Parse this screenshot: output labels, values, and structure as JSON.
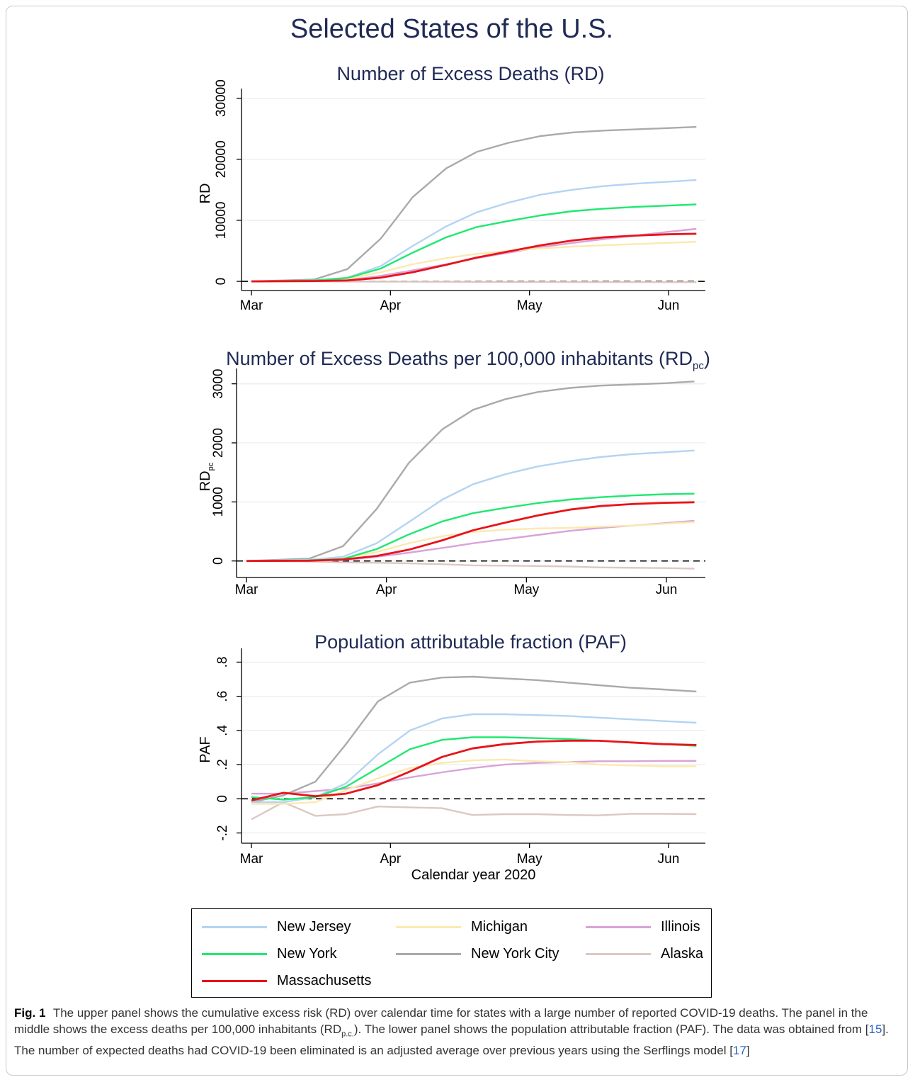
{
  "figure": {
    "title": "Selected States of the U.S."
  },
  "colors": {
    "title": "#1f2a55",
    "New Jersey": "#b3d4f3",
    "New York": "#20e870",
    "Massachusetts": "#e8131a",
    "Michigan": "#fbe9b0",
    "New York City": "#aaaaaa",
    "Illinois": "#d9a3d8",
    "Alaska": "#dcc8c2"
  },
  "legend": {
    "placement": "bottom",
    "items": [
      {
        "label": "New Jersey",
        "color_key": "New Jersey"
      },
      {
        "label": "Michigan",
        "color_key": "Michigan"
      },
      {
        "label": "Illinois",
        "color_key": "Illinois"
      },
      {
        "label": "New York",
        "color_key": "New York"
      },
      {
        "label": "New York City",
        "color_key": "New York City"
      },
      {
        "label": "Alaska",
        "color_key": "Alaska"
      },
      {
        "label": "Massachusetts",
        "color_key": "Massachusetts"
      }
    ]
  },
  "caption": {
    "label": "Fig. 1",
    "part1": "The upper panel shows the cumulative excess risk (RD) over calendar time for states with a large number of reported COVID-19 deaths. The panel in the middle shows the excess deaths per 100,000 inhabitants (RD",
    "sub": "p.c.",
    "part2": "). The lower panel shows the population attributable fraction (PAF). The data was obtained from [",
    "ref1": "15",
    "part3": "]. The number of expected deaths had COVID-19 been eliminated is an adjusted average over previous years using the Serflings model [",
    "ref2": "17",
    "part4": "]"
  },
  "chart_data": [
    {
      "type": "line",
      "title": "Number of Excess Deaths (RD)",
      "ylabel": "RD",
      "xlabel": "",
      "xticks": [
        "Mar",
        "Apr",
        "May",
        "Jun"
      ],
      "xlim": [
        -0.2,
        3.25
      ],
      "yticks": [
        "0",
        "10000",
        "20000",
        "30000"
      ],
      "ytick_values": [
        0,
        10000,
        20000,
        30000
      ],
      "ylim": [
        -1500,
        31000
      ],
      "reference_line": 0,
      "x": [
        0,
        0.45,
        0.69,
        0.93,
        1.16,
        1.4,
        1.62,
        1.85,
        2.08,
        2.31,
        2.53,
        2.76,
        2.99,
        3.2
      ],
      "series": [
        {
          "name": "Alaska",
          "values": [
            0,
            -20,
            -40,
            -50,
            -60,
            -70,
            -80,
            -90,
            -100,
            -110,
            -115,
            -120,
            -125,
            -130
          ]
        },
        {
          "name": "Illinois",
          "values": [
            0,
            50,
            200,
            900,
            1800,
            2800,
            3800,
            4700,
            5600,
            6300,
            6900,
            7500,
            8100,
            8600
          ]
        },
        {
          "name": "Michigan",
          "values": [
            0,
            100,
            400,
            1500,
            2800,
            3800,
            4500,
            5000,
            5400,
            5700,
            5900,
            6100,
            6300,
            6500
          ]
        },
        {
          "name": "New York City",
          "values": [
            0,
            300,
            2000,
            7000,
            13800,
            18500,
            21200,
            22700,
            23800,
            24400,
            24700,
            24900,
            25100,
            25300
          ]
        },
        {
          "name": "New Jersey",
          "values": [
            0,
            150,
            600,
            2500,
            5800,
            9000,
            11300,
            12900,
            14200,
            15000,
            15600,
            16000,
            16300,
            16600
          ]
        },
        {
          "name": "New York",
          "values": [
            0,
            150,
            550,
            2100,
            4700,
            7200,
            8900,
            9900,
            10800,
            11500,
            11900,
            12200,
            12400,
            12600
          ]
        },
        {
          "name": "Massachusetts",
          "values": [
            0,
            50,
            150,
            600,
            1500,
            2700,
            3900,
            4900,
            5900,
            6700,
            7200,
            7500,
            7700,
            7800
          ]
        }
      ]
    },
    {
      "type": "line",
      "title": "Number of Excess Deaths per 100,000 inhabitants (RD",
      "title_sub": "pc",
      "title_end": ")",
      "ylabel": "RD",
      "ylabel_sub": "pc",
      "xlabel": "",
      "xticks": [
        "Mar",
        "Apr",
        "May",
        "Jun"
      ],
      "xlim": [
        -0.2,
        3.25
      ],
      "yticks": [
        "0",
        "1000",
        "2000",
        "3000"
      ],
      "ytick_values": [
        0,
        1000,
        2000,
        3000
      ],
      "ylim": [
        -280,
        3200
      ],
      "reference_line": 0,
      "x": [
        0,
        0.45,
        0.69,
        0.93,
        1.16,
        1.4,
        1.62,
        1.85,
        2.08,
        2.31,
        2.53,
        2.76,
        2.99,
        3.2
      ],
      "series": [
        {
          "name": "Alaska",
          "values": [
            0,
            -10,
            -25,
            -30,
            -40,
            -55,
            -75,
            -80,
            -85,
            -95,
            -110,
            -115,
            -120,
            -130
          ]
        },
        {
          "name": "Illinois",
          "values": [
            0,
            5,
            15,
            70,
            140,
            220,
            300,
            370,
            440,
            510,
            560,
            600,
            640,
            680
          ]
        },
        {
          "name": "Michigan",
          "values": [
            0,
            10,
            40,
            150,
            300,
            420,
            490,
            530,
            550,
            560,
            580,
            600,
            630,
            660
          ]
        },
        {
          "name": "New York City",
          "values": [
            0,
            40,
            250,
            880,
            1660,
            2230,
            2560,
            2740,
            2860,
            2930,
            2970,
            2990,
            3010,
            3040
          ]
        },
        {
          "name": "New Jersey",
          "values": [
            0,
            20,
            70,
            300,
            660,
            1040,
            1300,
            1470,
            1600,
            1690,
            1760,
            1810,
            1840,
            1870
          ]
        },
        {
          "name": "New York",
          "values": [
            0,
            10,
            35,
            200,
            450,
            670,
            810,
            900,
            980,
            1040,
            1080,
            1110,
            1130,
            1140
          ]
        },
        {
          "name": "Massachusetts",
          "values": [
            0,
            5,
            25,
            85,
            190,
            350,
            520,
            650,
            770,
            870,
            930,
            965,
            985,
            995
          ]
        }
      ]
    },
    {
      "type": "line",
      "title": "Population attributable fraction (PAF)",
      "ylabel": "PAF",
      "xlabel": "Calendar year 2020",
      "xticks": [
        "Mar",
        "Apr",
        "May",
        "Jun"
      ],
      "xlim": [
        -0.2,
        3.25
      ],
      "yticks": [
        "-.2",
        "0",
        ".2",
        ".4",
        ".6",
        ".8"
      ],
      "ytick_values": [
        -0.2,
        0,
        0.2,
        0.4,
        0.6,
        0.8
      ],
      "ylim": [
        -0.26,
        0.86
      ],
      "reference_line": 0,
      "x": [
        0,
        0.23,
        0.46,
        0.68,
        0.91,
        1.14,
        1.37,
        1.59,
        1.82,
        2.05,
        2.28,
        2.5,
        2.73,
        2.96,
        3.2
      ],
      "series": [
        {
          "name": "Alaska",
          "values": [
            -0.12,
            -0.02,
            -0.1,
            -0.09,
            -0.045,
            -0.05,
            -0.055,
            -0.095,
            -0.09,
            -0.09,
            -0.095,
            -0.097,
            -0.088,
            -0.088,
            -0.09
          ]
        },
        {
          "name": "Illinois",
          "values": [
            0.03,
            0.03,
            0.045,
            0.06,
            0.09,
            0.125,
            0.155,
            0.18,
            0.2,
            0.21,
            0.215,
            0.22,
            0.22,
            0.222,
            0.222
          ]
        },
        {
          "name": "Michigan",
          "values": [
            -0.03,
            -0.03,
            -0.02,
            0.05,
            0.12,
            0.18,
            0.21,
            0.225,
            0.23,
            0.22,
            0.215,
            0.2,
            0.195,
            0.19,
            0.19
          ]
        },
        {
          "name": "New York City",
          "values": [
            -0.02,
            0.02,
            0.1,
            0.32,
            0.57,
            0.68,
            0.71,
            0.715,
            0.705,
            0.695,
            0.68,
            0.665,
            0.65,
            0.64,
            0.628
          ]
        },
        {
          "name": "New Jersey",
          "values": [
            -0.02,
            -0.02,
            0.01,
            0.09,
            0.26,
            0.4,
            0.47,
            0.495,
            0.495,
            0.49,
            0.485,
            0.475,
            0.465,
            0.455,
            0.445
          ]
        },
        {
          "name": "New York",
          "values": [
            0.01,
            -0.005,
            0.01,
            0.07,
            0.18,
            0.29,
            0.345,
            0.36,
            0.36,
            0.355,
            0.35,
            0.34,
            0.33,
            0.32,
            0.31
          ]
        },
        {
          "name": "Massachusetts",
          "values": [
            -0.01,
            0.035,
            0.015,
            0.03,
            0.08,
            0.16,
            0.245,
            0.295,
            0.32,
            0.335,
            0.34,
            0.34,
            0.33,
            0.32,
            0.315
          ]
        }
      ]
    }
  ]
}
